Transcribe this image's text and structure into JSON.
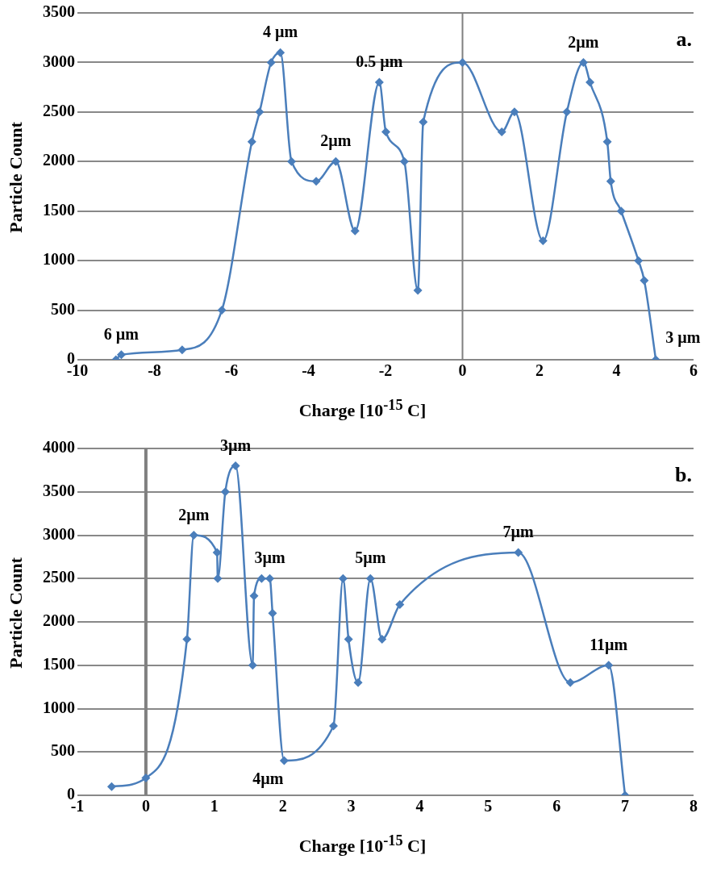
{
  "chart_data": [
    {
      "type": "line",
      "title": "a.",
      "xlabel": "Charge [10$^{-15}$ C]",
      "ylabel": "Particle Count",
      "xlim": [
        -10,
        6
      ],
      "xticks": [
        -10,
        -8,
        -6,
        -4,
        -2,
        0,
        2,
        4,
        6
      ],
      "ylim": [
        0,
        3500
      ],
      "yticks": [
        0,
        500,
        1000,
        1500,
        2000,
        2500,
        3000,
        3500
      ],
      "grid": "y",
      "legend": false,
      "marker": "diamond",
      "line_style": "solid",
      "ref_lines": [
        {
          "axis": "x",
          "value": 0,
          "color": "#808080"
        }
      ],
      "series": [
        {
          "color": "#4a7ebb",
          "x": [
            -9,
            -8.86,
            -7.28,
            -6.25,
            -5.47,
            -5.27,
            -4.97,
            -4.73,
            -4.44,
            -3.8,
            -3.29,
            -2.79,
            -2.16,
            -1.99,
            -1.51,
            -1.16,
            -1.02,
            0,
            1.02,
            1.35,
            2.09,
            2.71,
            3.14,
            3.31,
            3.76,
            3.85,
            4.12,
            4.57,
            4.72,
            5.02
          ],
          "values": [
            0,
            50,
            100,
            500,
            2200,
            2500,
            3000,
            3100,
            2000,
            1800,
            2000,
            1300,
            2800,
            2300,
            2000,
            700,
            2400,
            3000,
            2300,
            2500,
            1200,
            2500,
            3000,
            2800,
            2200,
            1800,
            1500,
            1000,
            800,
            0
          ]
        }
      ],
      "annotations": [
        {
          "text": "6 µm",
          "x": -8.86,
          "y": 50
        },
        {
          "text": "4 µm",
          "x": -4.73,
          "y": 3100
        },
        {
          "text": "2µm",
          "x": -3.29,
          "y": 2000
        },
        {
          "text": "0.5 µm",
          "x": -2.16,
          "y": 2800
        },
        {
          "text": "2µm",
          "x": 3.14,
          "y": 3000
        },
        {
          "text": "3 µm",
          "x": 5.02,
          "y": 0
        }
      ]
    },
    {
      "type": "line",
      "title": "b.",
      "xlabel": "Charge [10$^{-15}$ C]",
      "ylabel": "Particle Count",
      "xlim": [
        -1,
        8
      ],
      "xticks": [
        -1,
        0,
        1,
        2,
        3,
        4,
        5,
        6,
        7,
        8
      ],
      "ylim": [
        0,
        4000
      ],
      "yticks": [
        0,
        500,
        1000,
        1500,
        2000,
        2500,
        3000,
        3500,
        4000
      ],
      "grid": "y",
      "legend": false,
      "marker": "diamond",
      "line_style": "solid",
      "ref_lines": [
        {
          "axis": "x",
          "value": 0,
          "color": "#808080"
        }
      ],
      "series": [
        {
          "color": "#4a7ebb",
          "x": [
            -0.5,
            0,
            0.6,
            0.7,
            1.04,
            1.05,
            1.16,
            1.31,
            1.56,
            1.58,
            1.69,
            1.81,
            1.85,
            2.02,
            2.74,
            2.88,
            2.96,
            3.1,
            3.28,
            3.45,
            3.71,
            5.44,
            6.2,
            6.76,
            7
          ],
          "values": [
            100,
            200,
            1800,
            3000,
            2800,
            2500,
            3500,
            3800,
            1500,
            2300,
            2500,
            2500,
            2100,
            400,
            800,
            2500,
            1800,
            1300,
            2500,
            1800,
            2200,
            2800,
            1300,
            1500,
            0
          ]
        }
      ],
      "annotations": [
        {
          "text": "3µm",
          "x": 1.31,
          "y": 3800
        },
        {
          "text": "2µm",
          "x": 0.7,
          "y": 3000
        },
        {
          "text": "3µm",
          "x": 1.81,
          "y": 2500
        },
        {
          "text": "4µm",
          "x": 2.02,
          "y": 400
        },
        {
          "text": "5µm",
          "x": 3.28,
          "y": 2500
        },
        {
          "text": "7µm",
          "x": 5.44,
          "y": 2800
        },
        {
          "text": "11µm",
          "x": 6.76,
          "y": 1500
        }
      ]
    }
  ]
}
